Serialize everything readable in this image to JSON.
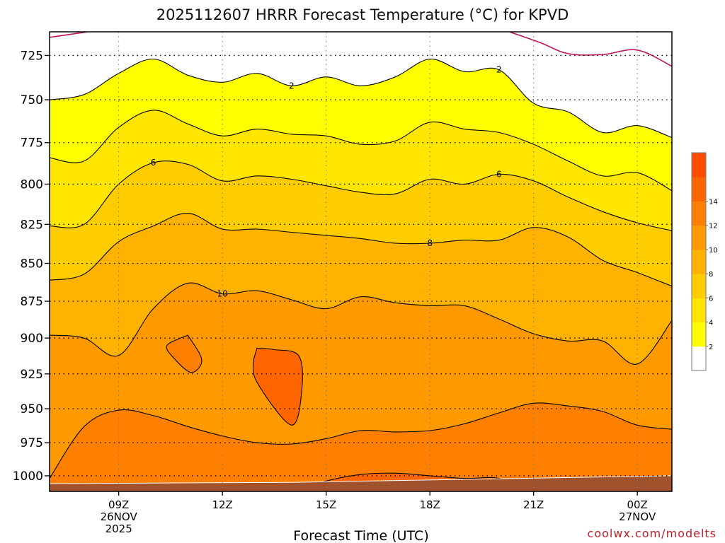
{
  "chart_data": {
    "type": "heatmap",
    "title": "2025112607 HRRR Forecast Temperature (°C) for KPVD",
    "xlabel": "Forecast Time (UTC)",
    "ylabel": "",
    "credit": "coolwx.com/modelts",
    "y_scale": "log-pressure, inverted",
    "ylim": [
      1012,
      712
    ],
    "y_ticks": [
      "725",
      "750",
      "775",
      "800",
      "825",
      "850",
      "875",
      "900",
      "925",
      "950",
      "975",
      "1000"
    ],
    "x_ticks": [
      {
        "label": "09Z",
        "line2": "26NOV",
        "line3": "2025"
      },
      {
        "label": "12Z",
        "line2": "",
        "line3": ""
      },
      {
        "label": "15Z",
        "line2": "",
        "line3": ""
      },
      {
        "label": "18Z",
        "line2": "",
        "line3": ""
      },
      {
        "label": "21Z",
        "line2": "",
        "line3": ""
      },
      {
        "label": "00Z",
        "line2": "27NOV",
        "line3": ""
      }
    ],
    "x_range_hours": [
      7,
      25
    ],
    "x_tick_hours": [
      9,
      12,
      15,
      18,
      21,
      24
    ],
    "grid": "dotted",
    "colorbar": {
      "levels": [
        0,
        2,
        4,
        6,
        8,
        10,
        12,
        14,
        16
      ],
      "tick_labels": [
        "2",
        "4",
        "6",
        "8",
        "10",
        "12",
        "14"
      ],
      "colors": [
        "#ffffff",
        "#ffff00",
        "#ffe500",
        "#ffcc00",
        "#ffb300",
        "#ff9900",
        "#ff8000",
        "#ff6600",
        "#ff4d00"
      ]
    },
    "surface_fill_color": "#a0522d",
    "freezing_contour_color": "#c0135a",
    "contour_labels": [
      "2",
      "2",
      "6",
      "6",
      "8",
      "10"
    ],
    "contours": [
      {
        "level": 0,
        "x": [
          7,
          8.1
        ],
        "p": [
          715,
          712
        ]
      },
      {
        "level": 0,
        "x": [
          20.3,
          21.2,
          22,
          23,
          24,
          25
        ],
        "p": [
          712,
          718,
          724,
          724.5,
          722,
          731
        ]
      },
      {
        "level": 2,
        "x": [
          7,
          8,
          9,
          10,
          11,
          12,
          13,
          14,
          15,
          16,
          17,
          18,
          19,
          20,
          21,
          22,
          23,
          24,
          25
        ],
        "p": [
          750,
          747,
          735,
          727,
          736,
          740,
          735,
          742,
          737,
          742,
          737,
          727,
          734,
          733,
          752,
          757,
          769,
          765,
          772
        ]
      },
      {
        "level": 4,
        "x": [
          7,
          8,
          9,
          10,
          11,
          12,
          13,
          14,
          15,
          16,
          17,
          18,
          19,
          20,
          21,
          22,
          23,
          24,
          25
        ],
        "p": [
          784,
          786,
          766,
          756,
          764,
          771,
          767,
          770,
          771,
          776,
          774,
          763,
          767,
          769,
          776,
          786,
          795,
          793,
          804
        ]
      },
      {
        "level": 6,
        "x": [
          7,
          8,
          9,
          10,
          11,
          12,
          13,
          14,
          15,
          16,
          17,
          18,
          19,
          20,
          21,
          22,
          23,
          24,
          25
        ],
        "p": [
          826,
          825,
          800,
          787,
          788,
          798,
          795,
          797,
          801,
          805,
          806,
          797,
          800,
          794,
          798,
          808,
          817,
          824,
          829
        ]
      },
      {
        "level": 8,
        "x": [
          7,
          8,
          9,
          10,
          11,
          12,
          13,
          14,
          15,
          16,
          17,
          18,
          19,
          20,
          21,
          22,
          23,
          24,
          25
        ],
        "p": [
          861,
          857,
          836,
          826,
          818,
          828,
          828,
          830,
          832,
          834,
          837,
          837,
          835,
          835,
          827,
          833,
          848,
          856,
          865
        ]
      },
      {
        "level": 10,
        "x": [
          7,
          8,
          9,
          10,
          11,
          12,
          13,
          14,
          15,
          16,
          17,
          18,
          19,
          20,
          21,
          22,
          23,
          24,
          25
        ],
        "p": [
          898,
          900,
          912,
          880,
          863,
          870,
          868,
          874,
          880,
          872,
          876,
          878,
          878,
          887,
          897,
          902,
          902,
          918,
          888
        ]
      },
      {
        "level": 12,
        "x": [
          7,
          8,
          9,
          10,
          11,
          12,
          13,
          14,
          15,
          16,
          17,
          18,
          19,
          20,
          21,
          22,
          23,
          24,
          25
        ],
        "p": [
          1002,
          963,
          951,
          955,
          963,
          970,
          975,
          976,
          972,
          966,
          967,
          966,
          961,
          953,
          946,
          948,
          952,
          962,
          965
        ]
      },
      {
        "level": 14,
        "x": [
          14,
          15,
          16,
          17,
          18,
          19,
          20,
          21
        ],
        "p": [
          1012,
          1004,
          999,
          998,
          1000,
          1002,
          1002,
          1012
        ]
      }
    ],
    "pockets": [
      {
        "level": 12,
        "x": [
          11,
          11.4,
          11.1,
          10.6,
          10.4,
          11
        ],
        "p": [
          898,
          915,
          924,
          914,
          905,
          898
        ]
      },
      {
        "level": 14,
        "x": [
          13,
          13.5,
          14.2,
          14.3,
          14,
          13,
          12.9
        ],
        "p": [
          907,
          908,
          912,
          935,
          962,
          931,
          915
        ]
      }
    ],
    "surface_p": {
      "x": [
        7,
        14,
        25
      ],
      "p": [
        1006,
        1005,
        1000
      ]
    }
  }
}
